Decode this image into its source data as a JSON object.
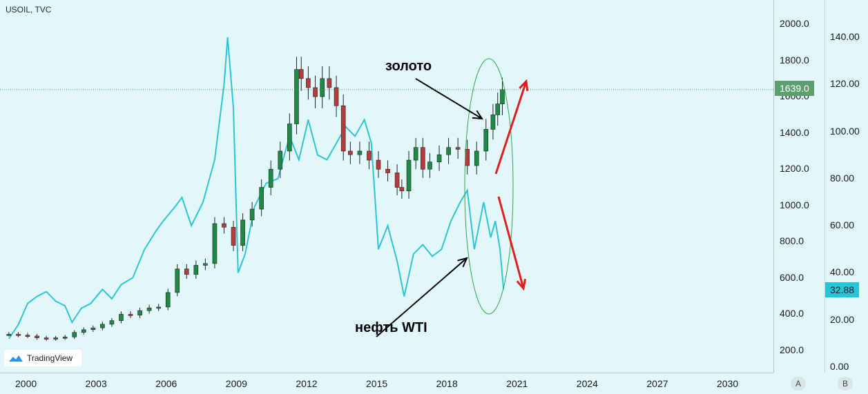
{
  "symbol": "USOIL, TVC",
  "branding": {
    "logo_text": "TradingView"
  },
  "annotations": {
    "gold": "золото",
    "oil": "нефть WTI"
  },
  "price_badges": {
    "gold_last": "1639.0",
    "oil_last": "32.88"
  },
  "corner_buttons": {
    "a": "A",
    "b": "B"
  },
  "colors": {
    "oil_line": "#2ec4d6",
    "candle_up": "#1f8a45",
    "candle_down": "#b83b3b",
    "arrow": "#e21d1d",
    "ellipse": "#2fa54b",
    "gold_badge": "#5c9e6e",
    "oil_badge": "#26c6da"
  },
  "chart_data": {
    "type": "line",
    "x_axis": {
      "tick_labels": [
        "2000",
        "2003",
        "2006",
        "2009",
        "2012",
        "2015",
        "2018",
        "2021",
        "2024",
        "2027",
        "2030"
      ],
      "range": [
        1999.2,
        2032.0
      ]
    },
    "y_axes": [
      {
        "id": "A",
        "series": "gold",
        "tick_labels": [
          "200.0",
          "400.0",
          "600.0",
          "800.0",
          "1000.0",
          "1200.0",
          "1400.0",
          "1600.0",
          "1800.0",
          "2000.0"
        ],
        "range": [
          80,
          2100
        ]
      },
      {
        "id": "B",
        "series": "oil",
        "tick_labels": [
          "0.00",
          "20.00",
          "40.00",
          "60.00",
          "80.00",
          "100.00",
          "120.00",
          "140.00"
        ],
        "range": [
          0,
          150
        ]
      }
    ],
    "series": [
      {
        "name": "золото",
        "style": "candlestick",
        "x": [
          1999.2,
          1999.6,
          2000.0,
          2000.4,
          2000.8,
          2001.2,
          2001.6,
          2002.0,
          2002.4,
          2002.8,
          2003.2,
          2003.6,
          2004.0,
          2004.4,
          2004.8,
          2005.2,
          2005.6,
          2006.0,
          2006.4,
          2006.8,
          2007.2,
          2007.6,
          2008.0,
          2008.4,
          2008.8,
          2009.2,
          2009.6,
          2010.0,
          2010.4,
          2010.8,
          2011.2,
          2011.5,
          2011.7,
          2012.0,
          2012.3,
          2012.6,
          2012.9,
          2013.2,
          2013.5,
          2013.8,
          2014.2,
          2014.6,
          2015.0,
          2015.4,
          2015.8,
          2016.0,
          2016.3,
          2016.6,
          2016.9,
          2017.2,
          2017.6,
          2018.0,
          2018.4,
          2018.8,
          2019.2,
          2019.6,
          2019.9,
          2020.1,
          2020.3
        ],
        "values": [
          290,
          285,
          280,
          270,
          265,
          270,
          275,
          300,
          315,
          325,
          345,
          365,
          400,
          395,
          420,
          435,
          440,
          520,
          650,
          620,
          670,
          680,
          900,
          880,
          780,
          920,
          980,
          1100,
          1200,
          1300,
          1450,
          1750,
          1700,
          1650,
          1600,
          1700,
          1650,
          1550,
          1300,
          1280,
          1300,
          1250,
          1200,
          1180,
          1100,
          1080,
          1250,
          1320,
          1200,
          1240,
          1280,
          1320,
          1310,
          1220,
          1300,
          1420,
          1500,
          1560,
          1639
        ]
      },
      {
        "name": "нефть WTI",
        "style": "line",
        "x": [
          1999.2,
          1999.6,
          2000.0,
          2000.4,
          2000.8,
          2001.2,
          2001.6,
          2001.9,
          2002.3,
          2002.7,
          2003.2,
          2003.6,
          2004.0,
          2004.5,
          2005.0,
          2005.5,
          2005.8,
          2006.3,
          2006.6,
          2007.0,
          2007.5,
          2008.0,
          2008.4,
          2008.55,
          2008.8,
          2009.0,
          2009.3,
          2009.7,
          2010.2,
          2010.7,
          2011.2,
          2011.6,
          2012.0,
          2012.4,
          2012.8,
          2013.2,
          2013.6,
          2014.0,
          2014.4,
          2014.7,
          2015.0,
          2015.4,
          2015.8,
          2016.1,
          2016.5,
          2016.9,
          2017.3,
          2017.7,
          2018.1,
          2018.5,
          2018.8,
          2019.1,
          2019.5,
          2019.8,
          2020.0,
          2020.2,
          2020.35
        ],
        "values": [
          12,
          18,
          27,
          30,
          32,
          28,
          26,
          19,
          25,
          27,
          33,
          29,
          35,
          38,
          50,
          58,
          62,
          68,
          72,
          60,
          70,
          88,
          120,
          140,
          110,
          40,
          48,
          68,
          78,
          80,
          98,
          88,
          105,
          90,
          88,
          95,
          102,
          98,
          105,
          95,
          50,
          60,
          45,
          30,
          48,
          52,
          47,
          50,
          62,
          70,
          75,
          50,
          70,
          55,
          62,
          50,
          33
        ]
      }
    ],
    "horizontal_line": {
      "value": 1639.0,
      "axis": "A"
    }
  }
}
